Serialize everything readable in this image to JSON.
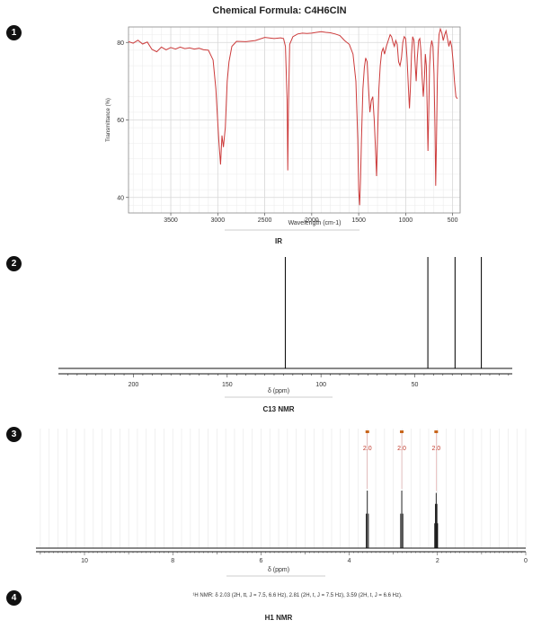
{
  "page_title": "Chemical Formula: C4H6ClN",
  "badges": [
    "1",
    "2",
    "3",
    "4"
  ],
  "chart_data": [
    {
      "type": "line",
      "caption": "IR",
      "xlabel": "Wavelength (cm-1)",
      "ylabel": "Transmittance (%)",
      "xlim": [
        3950,
        420
      ],
      "ylim": [
        36,
        84
      ],
      "xticks": [
        3500,
        3000,
        2500,
        2000,
        1500,
        1000,
        500
      ],
      "yticks": [
        40,
        60,
        80
      ],
      "grid": true,
      "series": [
        {
          "color": "#cc3b3b",
          "points": [
            [
              3950,
              80.2
            ],
            [
              3900,
              79.8
            ],
            [
              3850,
              80.6
            ],
            [
              3800,
              79.6
            ],
            [
              3750,
              80.1
            ],
            [
              3700,
              78.2
            ],
            [
              3650,
              77.6
            ],
            [
              3600,
              78.8
            ],
            [
              3550,
              78.1
            ],
            [
              3500,
              78.7
            ],
            [
              3450,
              78.3
            ],
            [
              3400,
              78.8
            ],
            [
              3350,
              78.4
            ],
            [
              3300,
              78.6
            ],
            [
              3250,
              78.3
            ],
            [
              3200,
              78.5
            ],
            [
              3150,
              78.1
            ],
            [
              3100,
              78.0
            ],
            [
              3050,
              75.5
            ],
            [
              3020,
              68.0
            ],
            [
              2990,
              55.0
            ],
            [
              2970,
              48.5
            ],
            [
              2955,
              56.0
            ],
            [
              2940,
              53.0
            ],
            [
              2920,
              58.0
            ],
            [
              2900,
              70.0
            ],
            [
              2880,
              75.0
            ],
            [
              2850,
              79.0
            ],
            [
              2800,
              80.3
            ],
            [
              2700,
              80.2
            ],
            [
              2600,
              80.5
            ],
            [
              2500,
              81.3
            ],
            [
              2400,
              81.0
            ],
            [
              2330,
              81.2
            ],
            [
              2300,
              81.0
            ],
            [
              2280,
              79.0
            ],
            [
              2262,
              65.0
            ],
            [
              2255,
              47.0
            ],
            [
              2248,
              62.0
            ],
            [
              2235,
              79.5
            ],
            [
              2200,
              81.5
            ],
            [
              2150,
              82.2
            ],
            [
              2100,
              82.4
            ],
            [
              2050,
              82.3
            ],
            [
              2000,
              82.4
            ],
            [
              1950,
              82.6
            ],
            [
              1900,
              82.8
            ],
            [
              1850,
              82.6
            ],
            [
              1800,
              82.5
            ],
            [
              1750,
              82.2
            ],
            [
              1700,
              81.8
            ],
            [
              1650,
              80.5
            ],
            [
              1600,
              79.5
            ],
            [
              1560,
              77.0
            ],
            [
              1530,
              70.0
            ],
            [
              1510,
              55.0
            ],
            [
              1500,
              42.0
            ],
            [
              1490,
              38.0
            ],
            [
              1480,
              45.0
            ],
            [
              1470,
              55.0
            ],
            [
              1455,
              68.0
            ],
            [
              1440,
              73.5
            ],
            [
              1425,
              76.0
            ],
            [
              1410,
              75.0
            ],
            [
              1395,
              68.0
            ],
            [
              1380,
              62.0
            ],
            [
              1365,
              65.0
            ],
            [
              1350,
              66.0
            ],
            [
              1335,
              60.0
            ],
            [
              1320,
              52.0
            ],
            [
              1310,
              45.5
            ],
            [
              1300,
              55.0
            ],
            [
              1285,
              68.0
            ],
            [
              1270,
              74.0
            ],
            [
              1255,
              77.5
            ],
            [
              1240,
              78.5
            ],
            [
              1225,
              77.0
            ],
            [
              1205,
              79.0
            ],
            [
              1185,
              80.5
            ],
            [
              1165,
              82.0
            ],
            [
              1150,
              81.5
            ],
            [
              1135,
              80.0
            ],
            [
              1120,
              79.0
            ],
            [
              1105,
              80.5
            ],
            [
              1090,
              79.5
            ],
            [
              1075,
              75.0
            ],
            [
              1060,
              74.0
            ],
            [
              1045,
              76.0
            ],
            [
              1030,
              80.0
            ],
            [
              1015,
              81.5
            ],
            [
              1000,
              81.0
            ],
            [
              985,
              76.0
            ],
            [
              970,
              68.0
            ],
            [
              960,
              63.0
            ],
            [
              950,
              68.0
            ],
            [
              938,
              77.0
            ],
            [
              925,
              81.5
            ],
            [
              912,
              80.5
            ],
            [
              900,
              75.0
            ],
            [
              888,
              70.0
            ],
            [
              876,
              76.0
            ],
            [
              862,
              80.5
            ],
            [
              850,
              81.0
            ],
            [
              838,
              78.0
            ],
            [
              825,
              71.0
            ],
            [
              812,
              66.0
            ],
            [
              800,
              71.0
            ],
            [
              790,
              77.0
            ],
            [
              780,
              74.0
            ],
            [
              770,
              62.0
            ],
            [
              762,
              52.0
            ],
            [
              755,
              61.0
            ],
            [
              745,
              74.0
            ],
            [
              735,
              78.5
            ],
            [
              722,
              80.5
            ],
            [
              710,
              79.0
            ],
            [
              698,
              72.0
            ],
            [
              688,
              58.0
            ],
            [
              680,
              43.0
            ],
            [
              672,
              55.0
            ],
            [
              663,
              70.0
            ],
            [
              655,
              77.0
            ],
            [
              645,
              82.0
            ],
            [
              630,
              83.5
            ],
            [
              615,
              82.5
            ],
            [
              600,
              80.5
            ],
            [
              585,
              82.0
            ],
            [
              570,
              83.0
            ],
            [
              555,
              81.0
            ],
            [
              540,
              79.0
            ],
            [
              525,
              80.5
            ],
            [
              510,
              79.0
            ],
            [
              495,
              75.0
            ],
            [
              480,
              70.0
            ],
            [
              465,
              66.0
            ],
            [
              450,
              65.5
            ]
          ]
        }
      ]
    },
    {
      "type": "line",
      "caption": "C13 NMR",
      "xlabel": "δ (ppm)",
      "xlim": [
        240,
        -2
      ],
      "xticks": [
        200,
        150,
        100,
        50
      ],
      "peaks": [
        119.0,
        43.0,
        28.5,
        14.5
      ]
    },
    {
      "type": "line",
      "caption": "H1 NMR",
      "xlabel": "δ (ppm)",
      "xlim": [
        11.1,
        0
      ],
      "xticks": [
        10,
        8,
        6,
        4,
        2,
        0
      ],
      "grid": true,
      "peaks": [
        {
          "center": 3.59,
          "integration": "2.0",
          "multiplicity": "t",
          "height": 0.52
        },
        {
          "center": 2.81,
          "integration": "2.0",
          "multiplicity": "t",
          "height": 0.52
        },
        {
          "center": 2.03,
          "integration": "2.0",
          "multiplicity": "tt",
          "height": 0.5
        }
      ],
      "annotation_text": "¹H NMR: δ 2.03 (2H, tt, J = 7.5, 6.6 Hz), 2.81 (2H, t, J = 7.5 Hz), 3.59 (2H, t, J = 6.6 Hz)."
    }
  ]
}
